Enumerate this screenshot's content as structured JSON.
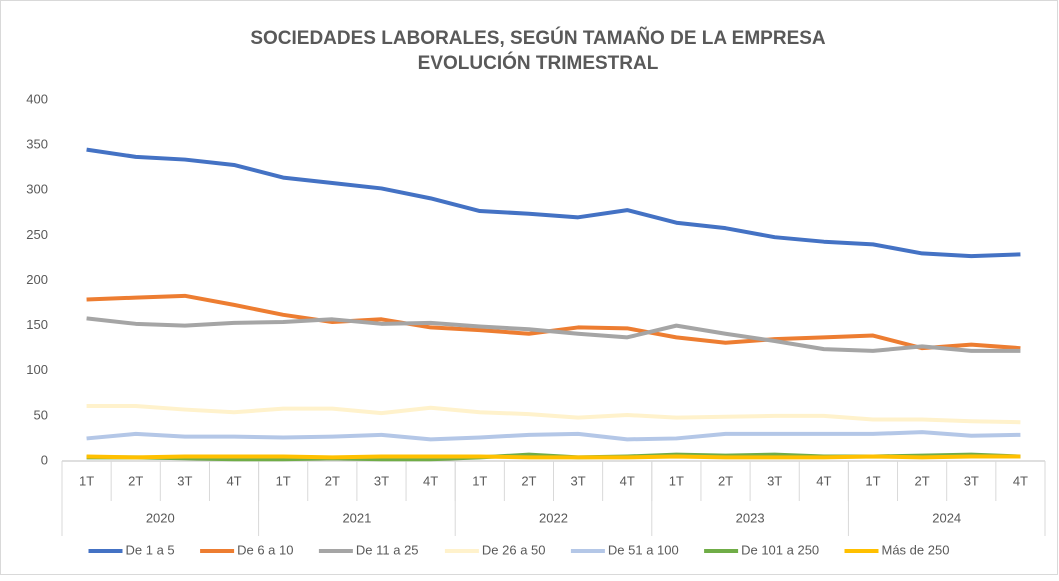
{
  "chart_data": {
    "type": "line",
    "title": "SOCIEDADES LABORALES, SEGÚN TAMAÑO DE LA EMPRESA",
    "subtitle": "EVOLUCIÓN TRIMESTRAL",
    "categories": [
      "1T",
      "2T",
      "3T",
      "4T",
      "1T",
      "2T",
      "3T",
      "4T",
      "1T",
      "2T",
      "3T",
      "4T",
      "1T",
      "2T",
      "3T",
      "4T",
      "1T",
      "2T",
      "3T",
      "4T"
    ],
    "category_groups": [
      "2020",
      "2021",
      "2022",
      "2023",
      "2024"
    ],
    "ylim": [
      0,
      400
    ],
    "yticks": [
      0,
      50,
      100,
      150,
      200,
      250,
      300,
      350,
      400
    ],
    "grid": false,
    "legend": "bottom",
    "series": [
      {
        "name": "De 1 a 5",
        "color": "#4472c4",
        "values": [
          345,
          337,
          334,
          328,
          314,
          308,
          302,
          291,
          277,
          274,
          270,
          278,
          264,
          258,
          248,
          243,
          240,
          230,
          227,
          229
        ]
      },
      {
        "name": "De 6 a 10",
        "color": "#ed7d31",
        "values": [
          179,
          181,
          183,
          173,
          162,
          154,
          157,
          148,
          145,
          141,
          148,
          147,
          137,
          131,
          135,
          137,
          139,
          125,
          129,
          125
        ]
      },
      {
        "name": "De 11 a 25",
        "color": "#a5a5a5",
        "values": [
          158,
          152,
          150,
          153,
          154,
          157,
          152,
          153,
          149,
          146,
          141,
          137,
          150,
          141,
          133,
          124,
          122,
          127,
          122,
          122
        ]
      },
      {
        "name": "De 26 a 50",
        "color": "#fff2cc",
        "values": [
          61,
          61,
          57,
          54,
          58,
          58,
          53,
          59,
          54,
          52,
          48,
          51,
          48,
          49,
          50,
          50,
          46,
          46,
          44,
          43
        ]
      },
      {
        "name": "De 51 a 100",
        "color": "#b4c7e7",
        "values": [
          25,
          30,
          27,
          27,
          26,
          27,
          29,
          24,
          26,
          29,
          30,
          24,
          25,
          30,
          30,
          30,
          30,
          32,
          28,
          29
        ]
      },
      {
        "name": "De 101 a 250",
        "color": "#70ad47",
        "values": [
          4,
          4,
          3,
          2,
          2,
          3,
          2,
          2,
          4,
          7,
          4,
          5,
          7,
          6,
          7,
          5,
          5,
          6,
          7,
          5
        ]
      },
      {
        "name": "Más de 250",
        "color": "#ffc000",
        "values": [
          5,
          4,
          5,
          5,
          5,
          4,
          5,
          5,
          5,
          4,
          4,
          4,
          5,
          4,
          4,
          4,
          5,
          4,
          5,
          5
        ]
      }
    ]
  }
}
